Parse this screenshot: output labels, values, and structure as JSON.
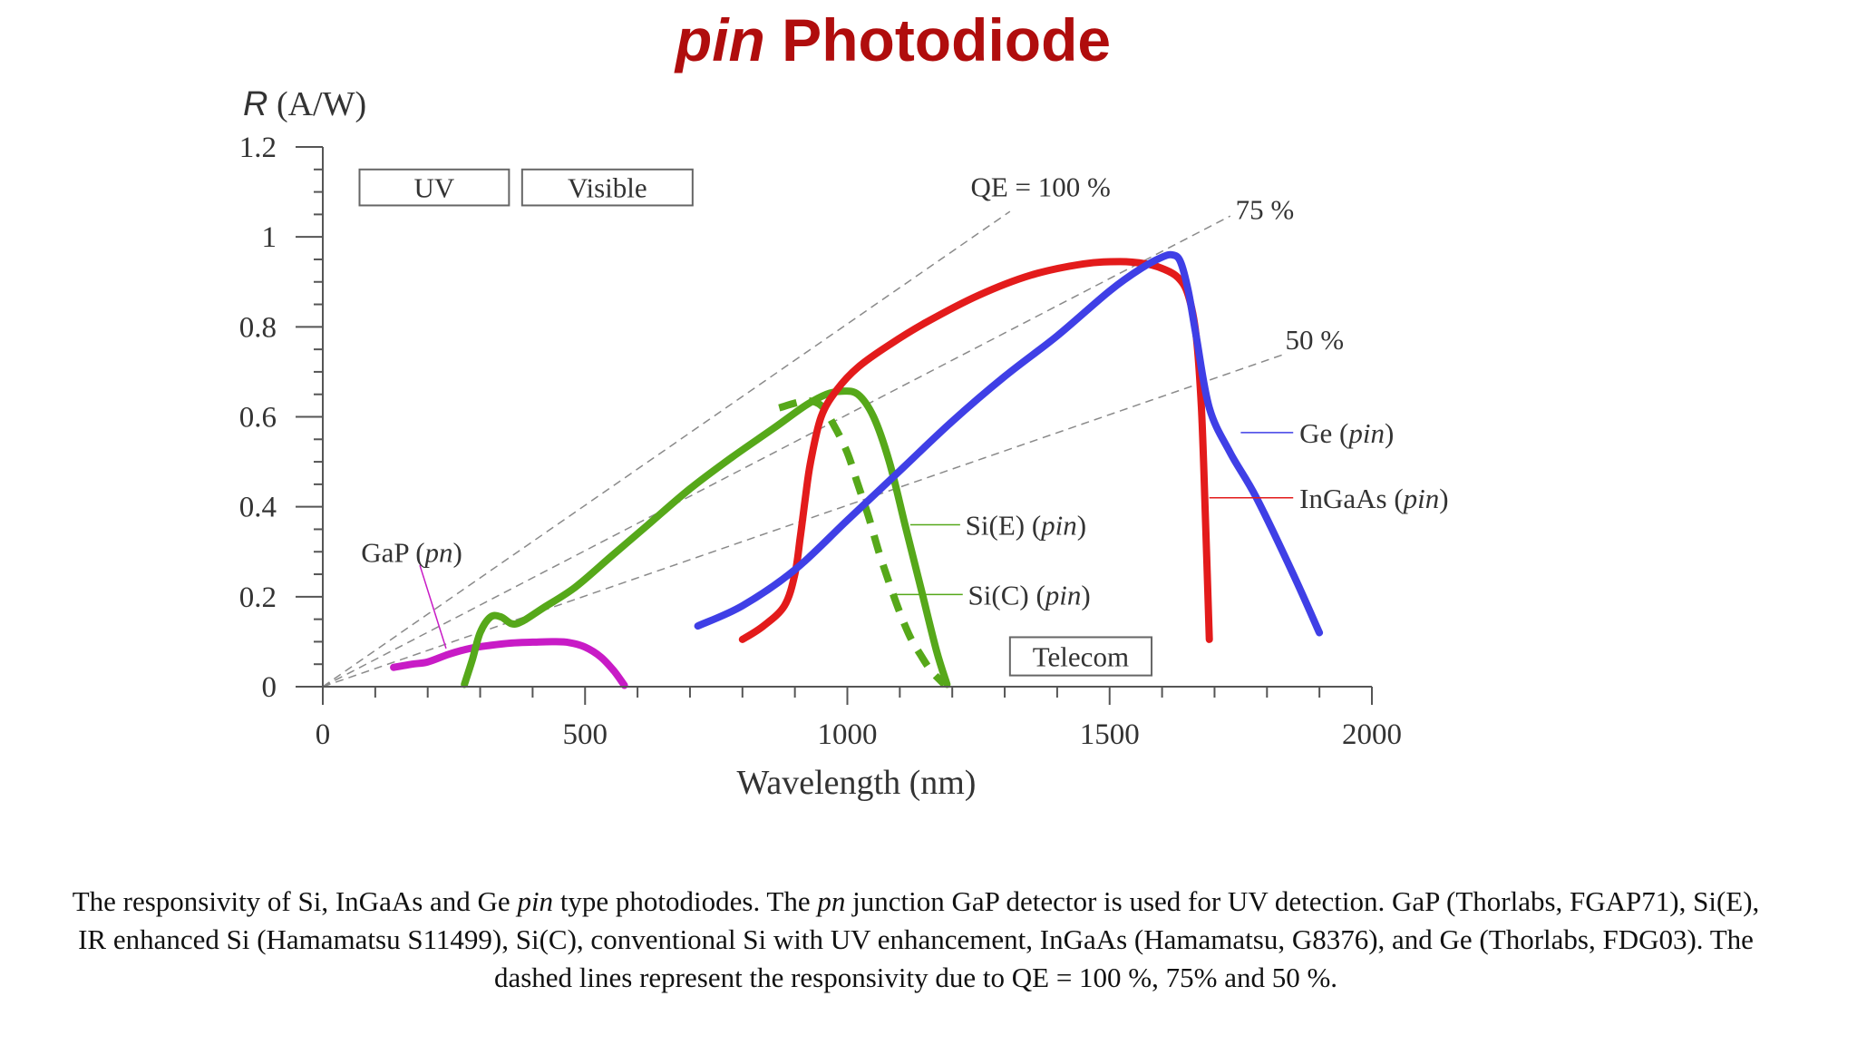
{
  "slide": {
    "title_italic": "pin",
    "title_rest": " Photodiode"
  },
  "caption": {
    "parts": [
      {
        "text": "The responsivity of Si, InGaAs and Ge ",
        "italic": false
      },
      {
        "text": "pin",
        "italic": true
      },
      {
        "text": " type photodiodes. The ",
        "italic": false
      },
      {
        "text": "pn",
        "italic": true
      },
      {
        "text": " junction GaP detector is used for UV detection. GaP (Thorlabs, FGAP71), Si(E), IR enhanced Si (Hamamatsu S11499), Si(C), conventional Si with UV enhancement, InGaAs (Hamamatsu, G8376), and Ge (Thorlabs, FDG03). The dashed lines represent the responsivity due to QE = 100 %, 75% and 50 %.",
        "italic": false
      }
    ]
  },
  "chart_data": {
    "type": "line",
    "xlabel": "Wavelength (nm)",
    "ylabel_italic": "R",
    "ylabel_rest": " (A/W)",
    "xlim": [
      0,
      2000
    ],
    "ylim": [
      0,
      1.2
    ],
    "x_ticks": [
      0,
      500,
      1000,
      1500,
      2000
    ],
    "x_tick_labels": [
      "0",
      "500",
      "1000",
      "1500",
      "2000"
    ],
    "y_ticks": [
      0,
      0.2,
      0.4,
      0.6,
      0.8,
      1.0,
      1.2
    ],
    "y_tick_labels": [
      "0",
      "0.2",
      "0.4",
      "0.6",
      "0.8",
      "1",
      "1.2"
    ],
    "grid": false,
    "region_boxes": [
      {
        "label": "UV",
        "x": [
          70,
          355
        ],
        "y": [
          1.07,
          1.15
        ]
      },
      {
        "label": "Visible",
        "x": [
          380,
          705
        ],
        "y": [
          1.07,
          1.15
        ]
      },
      {
        "label": "Telecom",
        "x": [
          1310,
          1580
        ],
        "y": [
          0.025,
          0.11
        ]
      }
    ],
    "qe_lines": [
      {
        "label": "QE = 100 %",
        "qe": 1.0,
        "x_end": 1310,
        "label_x": 1235,
        "label_y": 1.09
      },
      {
        "label": "75 %",
        "qe": 0.75,
        "x_end": 1730,
        "label_x": 1740,
        "label_y": 1.04
      },
      {
        "label": "50 %",
        "qe": 0.5,
        "x_end": 1830,
        "label_x": 1835,
        "label_y": 0.75
      }
    ],
    "series": [
      {
        "name": "GaP (pn)",
        "color": "#c81bc6",
        "dashed": false,
        "label_x": 73,
        "label_y": 0.3,
        "leader": [
          [
            185,
            0.27
          ],
          [
            235,
            0.085
          ]
        ],
        "x": [
          135,
          170,
          200,
          240,
          280,
          320,
          360,
          400,
          440,
          470,
          500,
          530,
          555,
          575
        ],
        "y": [
          0.043,
          0.05,
          0.055,
          0.072,
          0.085,
          0.092,
          0.097,
          0.099,
          0.1,
          0.098,
          0.088,
          0.066,
          0.035,
          0.003
        ]
      },
      {
        "name": "Si(E) (pin)",
        "color": "#56a81a",
        "dashed": false,
        "label_x": 1225,
        "label_y": 0.36,
        "leader": [
          [
            1120,
            0.36
          ],
          [
            1215,
            0.36
          ]
        ],
        "x": [
          270,
          285,
          300,
          320,
          340,
          360,
          380,
          420,
          480,
          550,
          620,
          700,
          780,
          860,
          920,
          960,
          990,
          1020,
          1050,
          1080,
          1110,
          1140,
          1170,
          1190
        ],
        "y": [
          0.005,
          0.06,
          0.12,
          0.155,
          0.155,
          0.14,
          0.145,
          0.175,
          0.22,
          0.29,
          0.36,
          0.44,
          0.51,
          0.575,
          0.625,
          0.65,
          0.657,
          0.65,
          0.6,
          0.5,
          0.36,
          0.22,
          0.08,
          0.005
        ]
      },
      {
        "name": "Si(C) (pin)",
        "color": "#56a81a",
        "dashed": true,
        "label_x": 1230,
        "label_y": 0.205,
        "leader": [
          [
            1085,
            0.205
          ],
          [
            1220,
            0.205
          ]
        ],
        "x": [
          870,
          920,
          950,
          975,
          1000,
          1020,
          1040,
          1060,
          1080,
          1100,
          1120,
          1140,
          1160,
          1185
        ],
        "y": [
          0.62,
          0.635,
          0.625,
          0.58,
          0.52,
          0.45,
          0.38,
          0.3,
          0.23,
          0.165,
          0.11,
          0.07,
          0.035,
          0.005
        ]
      },
      {
        "name": "InGaAs (pin)",
        "color": "#e31b1b",
        "dashed": false,
        "label_x": 1862,
        "label_y": 0.42,
        "leader": [
          [
            1690,
            0.42
          ],
          [
            1850,
            0.42
          ]
        ],
        "x": [
          800,
          840,
          880,
          900,
          910,
          920,
          930,
          950,
          980,
          1020,
          1080,
          1150,
          1250,
          1350,
          1450,
          1520,
          1570,
          1600,
          1630,
          1650,
          1665,
          1675,
          1682,
          1690
        ],
        "y": [
          0.105,
          0.135,
          0.18,
          0.25,
          0.33,
          0.42,
          0.5,
          0.6,
          0.66,
          0.71,
          0.76,
          0.81,
          0.87,
          0.915,
          0.94,
          0.945,
          0.94,
          0.93,
          0.91,
          0.87,
          0.78,
          0.62,
          0.4,
          0.105
        ]
      },
      {
        "name": "Ge (pin)",
        "color": "#3f3fe6",
        "dashed": false,
        "label_x": 1862,
        "label_y": 0.565,
        "leader": [
          [
            1750,
            0.565
          ],
          [
            1850,
            0.565
          ]
        ],
        "x": [
          715,
          800,
          900,
          1000,
          1100,
          1200,
          1300,
          1400,
          1500,
          1560,
          1600,
          1620,
          1635,
          1650,
          1665,
          1690,
          1730,
          1780,
          1850,
          1900
        ],
        "y": [
          0.135,
          0.18,
          0.26,
          0.37,
          0.48,
          0.59,
          0.69,
          0.78,
          0.88,
          0.93,
          0.955,
          0.96,
          0.945,
          0.88,
          0.78,
          0.62,
          0.52,
          0.42,
          0.25,
          0.12
        ]
      }
    ]
  }
}
